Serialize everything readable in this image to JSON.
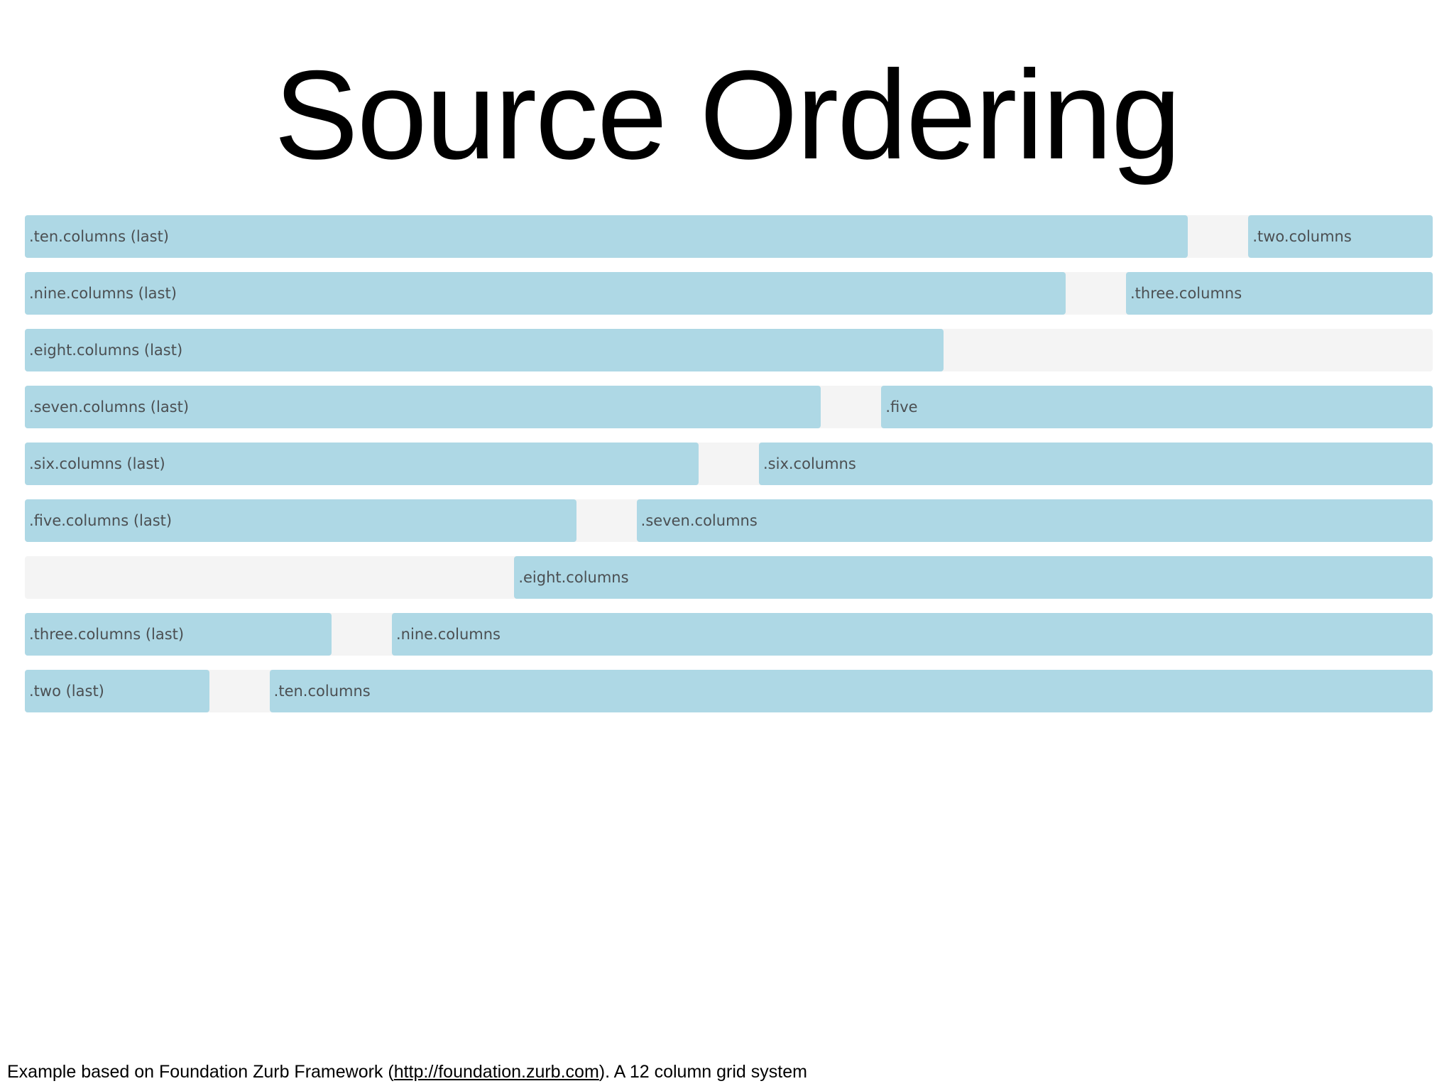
{
  "slide": {
    "title": "Source Ordering"
  },
  "grid": {
    "total_columns": 12,
    "rows": [
      {
        "cells": [
          {
            "label": ".ten.columns (last)",
            "start": 0,
            "span": 10
          },
          {
            "label": ".two.columns",
            "start": 10,
            "span": 2
          }
        ]
      },
      {
        "cells": [
          {
            "label": ".nine.columns (last)",
            "start": 0,
            "span": 9
          },
          {
            "label": ".three.columns",
            "start": 9,
            "span": 3
          }
        ]
      },
      {
        "cells": [
          {
            "label": ".eight.columns (last)",
            "start": 0,
            "span": 8
          }
        ]
      },
      {
        "cells": [
          {
            "label": ".seven.columns (last)",
            "start": 0,
            "span": 7
          },
          {
            "label": ".five",
            "start": 7,
            "span": 5
          }
        ]
      },
      {
        "cells": [
          {
            "label": ".six.columns (last)",
            "start": 0,
            "span": 6
          },
          {
            "label": ".six.columns",
            "start": 6,
            "span": 6
          }
        ]
      },
      {
        "cells": [
          {
            "label": ".five.columns (last)",
            "start": 0,
            "span": 5
          },
          {
            "label": ".seven.columns",
            "start": 5,
            "span": 7
          }
        ]
      },
      {
        "cells": [
          {
            "label": ".eight.columns",
            "start": 4,
            "span": 8
          }
        ]
      },
      {
        "cells": [
          {
            "label": ".three.columns (last)",
            "start": 0,
            "span": 3
          },
          {
            "label": ".nine.columns",
            "start": 3,
            "span": 9
          }
        ]
      },
      {
        "cells": [
          {
            "label": ".two (last)",
            "start": 0,
            "span": 2
          },
          {
            "label": ".ten.columns",
            "start": 2,
            "span": 10
          }
        ]
      }
    ]
  },
  "footer": {
    "prefix": "Example based on Foundation Zurb Framework (",
    "link_text": "http://foundation.zurb.com",
    "suffix": "). A 12 column grid system"
  },
  "colors": {
    "column_fill": "#aed8e5",
    "row_background": "#f4f4f4",
    "label_text": "#4b4f52"
  }
}
